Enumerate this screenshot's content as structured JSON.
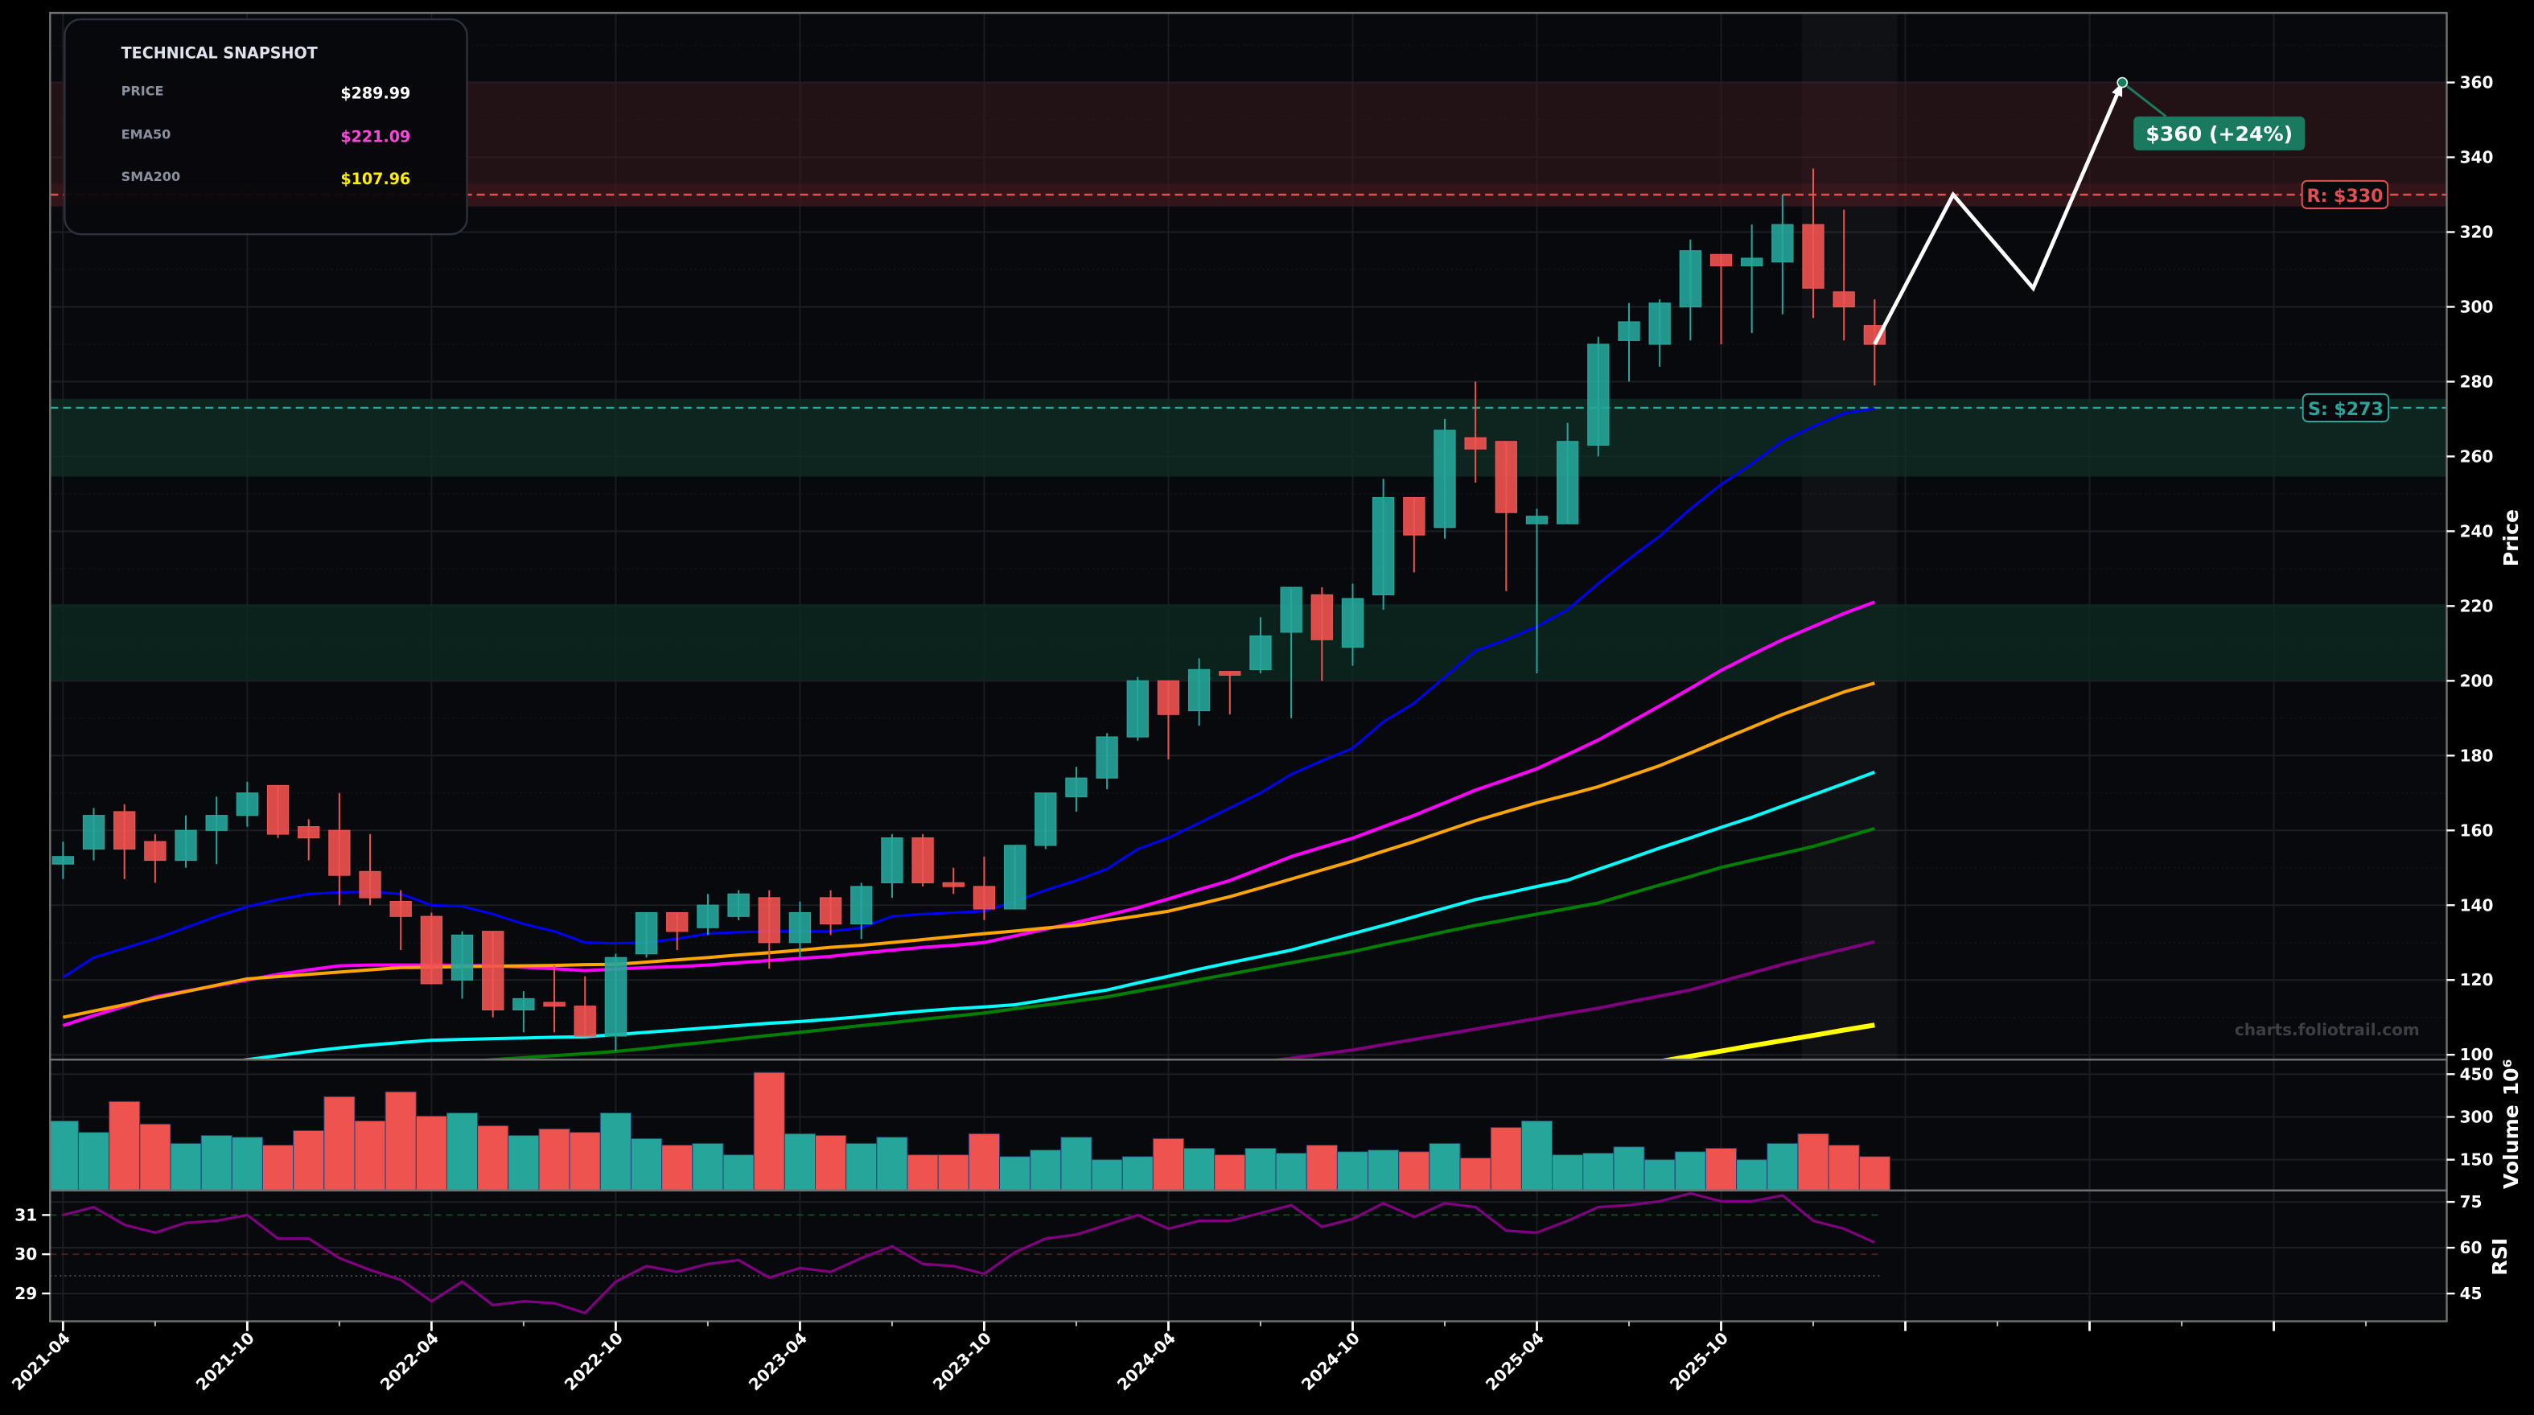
{
  "snapshot": {
    "title": "TECHNICAL SNAPSHOT",
    "rows": [
      {
        "label": "PRICE",
        "value": "$289.99",
        "color": "#ffffff"
      },
      {
        "label": "EMA50",
        "value": "$221.09",
        "color": "#ff44dd"
      },
      {
        "label": "SMA200",
        "value": "$107.96",
        "color": "#ffee00"
      }
    ]
  },
  "watermark": "charts.foliotrail.com",
  "chart_data": {
    "type": "candlestick",
    "title": "",
    "colors": {
      "up": "#26a69a",
      "down": "#ef5350",
      "background": "#08090d"
    },
    "price_axis": {
      "label": "Price",
      "ylim": [
        98.7,
        378.6
      ],
      "ticks": [
        100,
        120,
        140,
        160,
        180,
        200,
        220,
        240,
        260,
        280,
        300,
        320,
        340,
        360
      ],
      "tick_labels": [
        "100",
        "120",
        "140",
        "160",
        "180",
        "200",
        "220",
        "240",
        "260",
        "280",
        "300",
        "320",
        "340",
        "360"
      ],
      "grid": true
    },
    "x_axis": {
      "tick_dates": [
        "2021-04",
        "2021-10",
        "2022-04",
        "2022-10",
        "2023-04",
        "2023-10",
        "2024-04",
        "2024-10",
        "2025-04",
        "2025-10",
        "2026-04",
        "2026-10",
        "2027-04"
      ],
      "tick_labels": [
        "2021-04",
        "2021-10",
        "2022-04",
        "2022-10",
        "2023-04",
        "2023-10",
        "2024-04",
        "2024-10",
        "2025-04",
        "2025-10",
        "",
        "",
        ""
      ]
    },
    "dates": [
      "2021-04",
      "2021-05",
      "2021-06",
      "2021-07",
      "2021-08",
      "2021-09",
      "2021-10",
      "2021-11",
      "2021-12",
      "2022-01",
      "2022-02",
      "2022-03",
      "2022-04",
      "2022-05",
      "2022-06",
      "2022-07",
      "2022-08",
      "2022-09",
      "2022-10",
      "2022-11",
      "2022-12",
      "2023-01",
      "2023-02",
      "2023-03",
      "2023-04",
      "2023-05",
      "2023-06",
      "2023-07",
      "2023-08",
      "2023-09",
      "2023-10",
      "2023-11",
      "2023-12",
      "2024-01",
      "2024-02",
      "2024-03",
      "2024-04",
      "2024-05",
      "2024-06",
      "2024-07",
      "2024-08",
      "2024-09",
      "2024-10",
      "2024-11",
      "2024-12",
      "2025-01",
      "2025-02",
      "2025-03",
      "2025-04",
      "2025-05",
      "2025-06",
      "2025-07",
      "2025-08",
      "2025-09",
      "2025-10",
      "2025-11",
      "2025-12",
      "2026-01",
      "2026-02",
      "2026-03"
    ],
    "open": [
      151,
      155,
      165,
      157,
      152,
      160,
      164,
      172,
      161,
      160,
      149,
      141,
      137,
      120,
      133,
      112,
      114,
      113,
      105,
      127,
      138,
      134,
      137,
      142,
      130,
      142,
      135,
      146,
      158,
      146,
      145,
      139,
      156,
      169,
      174,
      185,
      200,
      192,
      202.5,
      203,
      213,
      223,
      209,
      223,
      249,
      241,
      265,
      264,
      242,
      242,
      263,
      291,
      290,
      300,
      314,
      311,
      312,
      322,
      304,
      295
    ],
    "high": [
      157,
      166,
      167,
      159,
      164,
      169,
      173,
      172,
      163,
      170,
      159,
      144,
      138,
      133,
      133,
      117,
      124,
      121,
      127,
      138,
      138,
      143,
      144,
      144,
      141,
      144,
      146,
      159,
      159,
      150,
      153,
      156,
      170,
      177,
      186,
      201,
      200,
      206,
      202.5,
      217,
      225,
      225,
      226,
      254,
      249,
      270,
      280,
      264,
      246,
      269,
      292,
      301,
      302,
      318,
      314,
      322,
      330,
      337,
      326,
      302
    ],
    "low": [
      147,
      152,
      147,
      146,
      150,
      151,
      161,
      158,
      152,
      140,
      140,
      128,
      119,
      115,
      110,
      106,
      106,
      105,
      101,
      126,
      128,
      132,
      136,
      123,
      126,
      132,
      131,
      142,
      145,
      143,
      136,
      139,
      155,
      165,
      171,
      184,
      179,
      188,
      191,
      202,
      190,
      200,
      204,
      219,
      229,
      238,
      253,
      224,
      202,
      242,
      260,
      280,
      284,
      291,
      290,
      293,
      298,
      297,
      291,
      279
    ],
    "close": [
      153,
      164,
      155,
      152,
      160,
      164,
      170,
      159,
      158,
      148,
      142,
      137,
      119,
      132,
      112,
      115,
      113,
      105,
      126,
      138,
      133,
      140,
      143,
      130,
      138,
      135,
      145,
      158,
      146,
      145,
      139,
      156,
      170,
      174,
      185,
      200,
      191,
      203,
      201.5,
      212,
      225,
      211,
      222,
      249,
      239,
      267,
      262,
      245,
      244,
      264,
      290,
      296,
      301,
      315,
      311,
      313,
      322,
      305,
      300,
      289.99
    ],
    "moving_averages": [
      {
        "color": "#0000ff",
        "values": [
          120.7,
          126,
          128.5,
          131,
          134,
          137,
          139.6,
          141.5,
          143,
          143.4,
          143.6,
          143,
          140,
          139.7,
          137.6,
          135,
          133,
          130,
          129.8,
          130,
          131,
          132.4,
          132.8,
          133,
          133,
          133,
          134,
          137,
          137.6,
          138,
          138.4,
          141,
          144,
          146.6,
          149.7,
          155,
          158,
          162,
          166,
          170,
          175,
          178.6,
          182,
          189,
          194,
          201,
          208,
          211,
          214.5,
          219,
          226,
          232.6,
          238.7,
          246,
          252.5,
          258,
          264,
          268,
          271.5,
          272.8
        ]
      },
      {
        "name": "EMA50",
        "color": "#ff00ff",
        "values": [
          107.8,
          110.5,
          113,
          115.5,
          117,
          118.5,
          120,
          121.5,
          122.7,
          123.8,
          124,
          124,
          124,
          123.9,
          123.8,
          123.4,
          123,
          122.5,
          122.9,
          123.3,
          123.6,
          124,
          124.6,
          125.2,
          125.8,
          126.3,
          127.2,
          128,
          128.7,
          129.3,
          130,
          131.8,
          133.6,
          135.4,
          137.3,
          139.3,
          141.7,
          144.2,
          146.6,
          149.8,
          153,
          155.5,
          157.9,
          161,
          164,
          167.4,
          170.8,
          173.6,
          176.5,
          180.3,
          184.2,
          188.7,
          193.3,
          198,
          202.8,
          207,
          211,
          214.5,
          218,
          221.09
        ]
      },
      {
        "color": "#ffa500",
        "values": [
          110,
          111.7,
          113.4,
          115.2,
          116.9,
          118.6,
          120.3,
          120.9,
          121.5,
          122.1,
          122.7,
          123.3,
          123.4,
          123.6,
          123.7,
          123.8,
          123.9,
          124.1,
          124.2,
          124.8,
          125.4,
          126,
          126.7,
          127.3,
          128,
          128.7,
          129.3,
          130,
          130.8,
          131.6,
          132.4,
          133.1,
          133.9,
          134.6,
          135.9,
          137.1,
          138.4,
          140.3,
          142.3,
          144.6,
          147,
          149.4,
          151.8,
          154.4,
          157,
          159.8,
          162.6,
          165,
          167.4,
          169.5,
          171.7,
          174.5,
          177.3,
          180.7,
          184.2,
          187.6,
          191,
          194,
          197,
          199.4
        ]
      },
      {
        "color": "#00ffff",
        "values": [
          null,
          null,
          null,
          null,
          96,
          97.5,
          98.7,
          99.8,
          100.9,
          101.8,
          102.6,
          103.3,
          103.9,
          104.1,
          104.3,
          104.5,
          104.7,
          104.8,
          105.4,
          106,
          106.6,
          107.2,
          107.8,
          108.4,
          108.9,
          109.5,
          110.2,
          111,
          111.7,
          112.3,
          112.8,
          113.4,
          114.7,
          116,
          117.3,
          119.2,
          121,
          122.9,
          124.6,
          126.3,
          128,
          130.2,
          132.4,
          134.6,
          136.9,
          139.2,
          141.5,
          143.2,
          145,
          146.7,
          149.6,
          152.4,
          155.3,
          158,
          160.8,
          163.5,
          166.5,
          169.5,
          172.5,
          175.6
        ]
      },
      {
        "color": "#008000",
        "values": [
          null,
          null,
          null,
          null,
          null,
          null,
          null,
          null,
          null,
          null,
          null,
          null,
          null,
          98.2,
          98.7,
          99.2,
          99.8,
          100.3,
          100.9,
          101.7,
          102.6,
          103.4,
          104.3,
          105.2,
          106,
          106.9,
          107.8,
          108.6,
          109.5,
          110.3,
          111.2,
          112.3,
          113.3,
          114.4,
          115.5,
          117,
          118.5,
          120.1,
          121.6,
          123.1,
          124.6,
          126.1,
          127.6,
          129.4,
          131.1,
          132.9,
          134.6,
          136.1,
          137.6,
          139.1,
          140.6,
          143,
          145.4,
          147.7,
          150.1,
          152,
          153.8,
          155.7,
          158.1,
          160.5
        ]
      },
      {
        "color": "#800080",
        "values": [
          null,
          null,
          null,
          null,
          null,
          null,
          null,
          null,
          null,
          null,
          null,
          null,
          null,
          null,
          null,
          null,
          null,
          null,
          null,
          null,
          null,
          null,
          null,
          null,
          null,
          null,
          null,
          null,
          null,
          null,
          null,
          null,
          null,
          null,
          null,
          null,
          null,
          null,
          null,
          98.0,
          99.1,
          100.2,
          101.3,
          102.7,
          104.1,
          105.5,
          106.9,
          108.3,
          109.7,
          111.1,
          112.5,
          114.1,
          115.7,
          117.3,
          119.6,
          121.9,
          124.2,
          126.2,
          128.2,
          130.2
        ]
      },
      {
        "name": "SMA200",
        "color": "#ffff00",
        "values": [
          null,
          null,
          null,
          null,
          null,
          null,
          null,
          null,
          null,
          null,
          null,
          null,
          null,
          null,
          null,
          null,
          null,
          null,
          null,
          null,
          null,
          null,
          null,
          null,
          null,
          null,
          null,
          null,
          null,
          null,
          null,
          null,
          null,
          null,
          null,
          null,
          null,
          null,
          null,
          null,
          null,
          null,
          null,
          null,
          null,
          null,
          null,
          null,
          null,
          null,
          null,
          null,
          98.2,
          99.6,
          101.0,
          102.4,
          103.8,
          105.2,
          106.6,
          107.96
        ]
      }
    ],
    "resistance": {
      "price": 330,
      "label": "R: $330",
      "color": "#e05050",
      "zone": [
        326.8,
        360
      ]
    },
    "support": {
      "price": 273,
      "label": "S: $273",
      "color": "#2aa59a",
      "zone": [
        254.6,
        275.4
      ]
    },
    "demand_zone": [
      200.2,
      220.5
    ],
    "highlight_range": [
      "2026-01",
      "2026-03"
    ],
    "forecast": {
      "dates": [
        "2026-03-01",
        "2026-05-18",
        "2026-08-06",
        "2026-11-03"
      ],
      "prices": [
        289.99,
        330,
        305,
        360
      ],
      "target_label": "$360 (+24%)",
      "target_color": "#1a7a60"
    },
    "volume": {
      "label": "Volume",
      "unit": "10⁶",
      "ylim": [
        42,
        501
      ],
      "ticks": [
        150,
        300,
        450
      ],
      "tick_labels": [
        "150",
        "300",
        "450"
      ],
      "values": [
        286,
        246,
        354,
        275,
        207,
        235,
        229,
        201,
        252,
        371,
        286,
        388,
        303,
        314,
        269,
        235,
        258,
        246,
        314,
        224,
        201,
        207,
        167,
        456,
        241,
        235,
        207,
        229,
        167,
        167,
        241,
        161,
        184,
        229,
        150,
        161,
        224,
        190,
        167,
        190,
        173,
        201,
        178,
        184,
        178,
        207,
        156,
        263,
        286,
        167,
        173,
        195,
        150,
        178,
        190,
        150,
        207,
        241,
        201,
        161
      ]
    },
    "rsi": {
      "label": "RSI",
      "ylim_left": [
        28.29,
        31.625
      ],
      "left_ticks": [
        29,
        30,
        31
      ],
      "left_tick_labels": [
        "29",
        "30",
        "31"
      ],
      "ylim_right": [
        35.9,
        78.75
      ],
      "right_ticks": [
        45,
        60,
        75
      ],
      "right_tick_labels": [
        "45",
        "60",
        "75"
      ],
      "reference_lines": [
        {
          "value": 31,
          "color": "#0f4a1a",
          "style": "dashed"
        },
        {
          "value": 30,
          "color": "#5a1515",
          "style": "dashed"
        },
        {
          "value": 29.45,
          "color": "#444444",
          "style": "dotted"
        }
      ],
      "color": "#800080",
      "values": [
        31.0,
        31.2,
        30.75,
        30.55,
        30.8,
        30.85,
        31.0,
        30.4,
        30.4,
        29.9,
        29.6,
        29.35,
        28.8,
        29.3,
        28.7,
        28.8,
        28.75,
        28.5,
        29.3,
        29.7,
        29.55,
        29.75,
        29.85,
        29.4,
        29.65,
        29.55,
        29.9,
        30.2,
        29.75,
        29.7,
        29.5,
        30.05,
        30.4,
        30.5,
        30.75,
        31.0,
        30.65,
        30.85,
        30.85,
        31.05,
        31.25,
        30.7,
        30.9,
        31.3,
        30.95,
        31.3,
        31.2,
        30.6,
        30.55,
        30.85,
        31.2,
        31.25,
        31.35,
        31.55,
        31.35,
        31.35,
        31.5,
        30.85,
        30.65,
        30.3
      ]
    }
  }
}
